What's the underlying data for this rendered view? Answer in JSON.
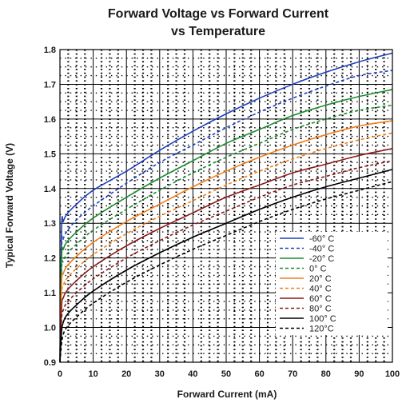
{
  "chart_data": {
    "type": "line",
    "title": "Forward Voltage vs Forward Current",
    "subtitle": "vs Temperature",
    "xlabel": "Forward Current (mA)",
    "ylabel": "Typical Forward Voltage (V)",
    "xlim": [
      0,
      100
    ],
    "ylim": [
      0.9,
      1.8
    ],
    "x_ticks": [
      0,
      10,
      20,
      30,
      40,
      50,
      60,
      70,
      80,
      90,
      100
    ],
    "y_ticks": [
      0.9,
      1.0,
      1.1,
      1.2,
      1.3,
      1.4,
      1.5,
      1.6,
      1.7,
      1.8
    ],
    "grid": true,
    "legend_position": "bottom-right",
    "x": [
      0,
      0.5,
      1,
      2,
      5,
      10,
      20,
      30,
      40,
      50,
      60,
      70,
      80,
      90,
      100
    ],
    "series": [
      {
        "name": "-60° C",
        "color": "#1f3fbf",
        "dash": "solid",
        "values": [
          0.9,
          1.285,
          1.305,
          1.325,
          1.355,
          1.395,
          1.45,
          1.51,
          1.565,
          1.615,
          1.66,
          1.7,
          1.735,
          1.765,
          1.79
        ]
      },
      {
        "name": "-40° C",
        "color": "#1f3fbf",
        "dash": "dashed",
        "values": [
          0.9,
          1.23,
          1.255,
          1.275,
          1.31,
          1.35,
          1.415,
          1.475,
          1.525,
          1.575,
          1.62,
          1.66,
          1.695,
          1.725,
          1.74
        ]
      },
      {
        "name": "-20° C",
        "color": "#1a8c2e",
        "dash": "solid",
        "values": [
          0.9,
          1.2,
          1.225,
          1.245,
          1.275,
          1.315,
          1.375,
          1.43,
          1.48,
          1.53,
          1.57,
          1.61,
          1.64,
          1.665,
          1.685
        ]
      },
      {
        "name": "0° C",
        "color": "#1a8c2e",
        "dash": "dashed",
        "values": [
          0.9,
          1.165,
          1.19,
          1.21,
          1.24,
          1.28,
          1.34,
          1.395,
          1.445,
          1.49,
          1.53,
          1.57,
          1.6,
          1.625,
          1.64
        ]
      },
      {
        "name": "20° C",
        "color": "#f07f1a",
        "dash": "solid",
        "values": [
          0.9,
          1.13,
          1.155,
          1.175,
          1.205,
          1.245,
          1.305,
          1.355,
          1.405,
          1.45,
          1.49,
          1.525,
          1.555,
          1.58,
          1.595
        ]
      },
      {
        "name": "40° C",
        "color": "#f07f1a",
        "dash": "dashed",
        "values": [
          0.9,
          1.095,
          1.12,
          1.14,
          1.17,
          1.21,
          1.27,
          1.32,
          1.365,
          1.41,
          1.45,
          1.485,
          1.515,
          1.54,
          1.56
        ]
      },
      {
        "name": "60° C",
        "color": "#8b1a1a",
        "dash": "solid",
        "values": [
          0.9,
          1.06,
          1.085,
          1.105,
          1.135,
          1.175,
          1.235,
          1.285,
          1.33,
          1.375,
          1.41,
          1.445,
          1.47,
          1.495,
          1.515
        ]
      },
      {
        "name": "80° C",
        "color": "#8b1a1a",
        "dash": "dashed",
        "values": [
          0.9,
          1.025,
          1.05,
          1.07,
          1.1,
          1.14,
          1.2,
          1.25,
          1.295,
          1.335,
          1.375,
          1.41,
          1.435,
          1.46,
          1.48
        ]
      },
      {
        "name": "100° C",
        "color": "#000000",
        "dash": "solid",
        "values": [
          0.9,
          0.99,
          1.015,
          1.035,
          1.065,
          1.105,
          1.165,
          1.215,
          1.26,
          1.3,
          1.34,
          1.375,
          1.405,
          1.43,
          1.455
        ]
      },
      {
        "name": "120°C",
        "color": "#000000",
        "dash": "dashed",
        "values": [
          0.9,
          0.955,
          0.98,
          1.0,
          1.03,
          1.07,
          1.13,
          1.18,
          1.225,
          1.265,
          1.305,
          1.34,
          1.37,
          1.395,
          1.42
        ]
      }
    ]
  }
}
